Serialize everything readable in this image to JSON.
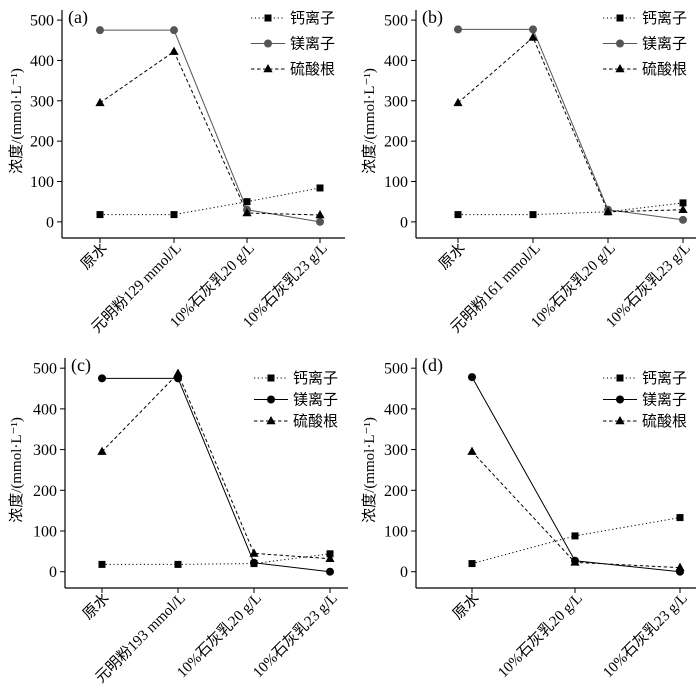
{
  "chart_data": [
    {
      "type": "line",
      "panel_label": "(a)",
      "ylabel": "浓度/(mmol·L⁻¹)",
      "ylim": [
        -40,
        525
      ],
      "yticks": [
        0,
        100,
        200,
        300,
        400,
        500
      ],
      "categories": [
        "原水",
        "元明粉129 mmol/L",
        "10%石灰乳20 g/L",
        "10%石灰乳23 g/L"
      ],
      "legend_position": "top-right",
      "grid": false,
      "series": [
        {
          "name": "钙离子",
          "marker": "square",
          "line_style": "dotted",
          "color": "#000000",
          "values": [
            18,
            18,
            50,
            84
          ]
        },
        {
          "name": "镁离子",
          "marker": "circle",
          "line_style": "solid",
          "color": "#555555",
          "values": [
            475,
            475,
            30,
            0
          ]
        },
        {
          "name": "硫酸根",
          "marker": "triangle",
          "line_style": "dashed",
          "color": "#000000",
          "values": [
            295,
            422,
            22,
            17
          ]
        }
      ]
    },
    {
      "type": "line",
      "panel_label": "(b)",
      "ylabel": "浓度/(mmol·L⁻¹)",
      "ylim": [
        -40,
        525
      ],
      "yticks": [
        0,
        100,
        200,
        300,
        400,
        500
      ],
      "categories": [
        "原水",
        "元明粉161 mmol/L",
        "10%石灰乳20 g/L",
        "10%石灰乳23 g/L"
      ],
      "legend_position": "top-right",
      "grid": false,
      "series": [
        {
          "name": "钙离子",
          "marker": "square",
          "line_style": "dotted",
          "color": "#000000",
          "values": [
            18,
            18,
            25,
            47
          ]
        },
        {
          "name": "镁离子",
          "marker": "circle",
          "line_style": "solid",
          "color": "#555555",
          "values": [
            477,
            477,
            30,
            5
          ]
        },
        {
          "name": "硫酸根",
          "marker": "triangle",
          "line_style": "dashed",
          "color": "#000000",
          "values": [
            295,
            457,
            25,
            30
          ]
        }
      ]
    },
    {
      "type": "line",
      "panel_label": "(c)",
      "ylabel": "浓度/(mmol·L⁻¹)",
      "ylim": [
        -40,
        525
      ],
      "yticks": [
        0,
        100,
        200,
        300,
        400,
        500
      ],
      "categories": [
        "原水",
        "元明粉193 mmol/L",
        "10%石灰乳20 g/L",
        "10%石灰乳23 g/L"
      ],
      "legend_position": "top-right",
      "grid": false,
      "series": [
        {
          "name": "钙离子",
          "marker": "square",
          "line_style": "dotted",
          "color": "#000000",
          "values": [
            18,
            18,
            20,
            44
          ]
        },
        {
          "name": "镁离子",
          "marker": "circle",
          "line_style": "solid",
          "color": "#000000",
          "values": [
            475,
            475,
            22,
            0
          ]
        },
        {
          "name": "硫酸根",
          "marker": "triangle",
          "line_style": "dashed",
          "color": "#000000",
          "values": [
            295,
            487,
            45,
            32
          ]
        }
      ]
    },
    {
      "type": "line",
      "panel_label": "(d)",
      "ylabel": "浓度/(mmol·L⁻¹)",
      "ylim": [
        -40,
        525
      ],
      "yticks": [
        0,
        100,
        200,
        300,
        400,
        500
      ],
      "categories": [
        "原水",
        "10%石灰乳20 g/L",
        "10%石灰乳23 g/L"
      ],
      "legend_position": "top-right",
      "grid": false,
      "series": [
        {
          "name": "钙离子",
          "marker": "square",
          "line_style": "dotted",
          "color": "#000000",
          "values": [
            20,
            88,
            133
          ]
        },
        {
          "name": "镁离子",
          "marker": "circle",
          "line_style": "solid",
          "color": "#000000",
          "values": [
            478,
            27,
            0
          ]
        },
        {
          "name": "硫酸根",
          "marker": "triangle",
          "line_style": "dashed",
          "color": "#000000",
          "values": [
            295,
            23,
            10
          ]
        }
      ]
    }
  ]
}
